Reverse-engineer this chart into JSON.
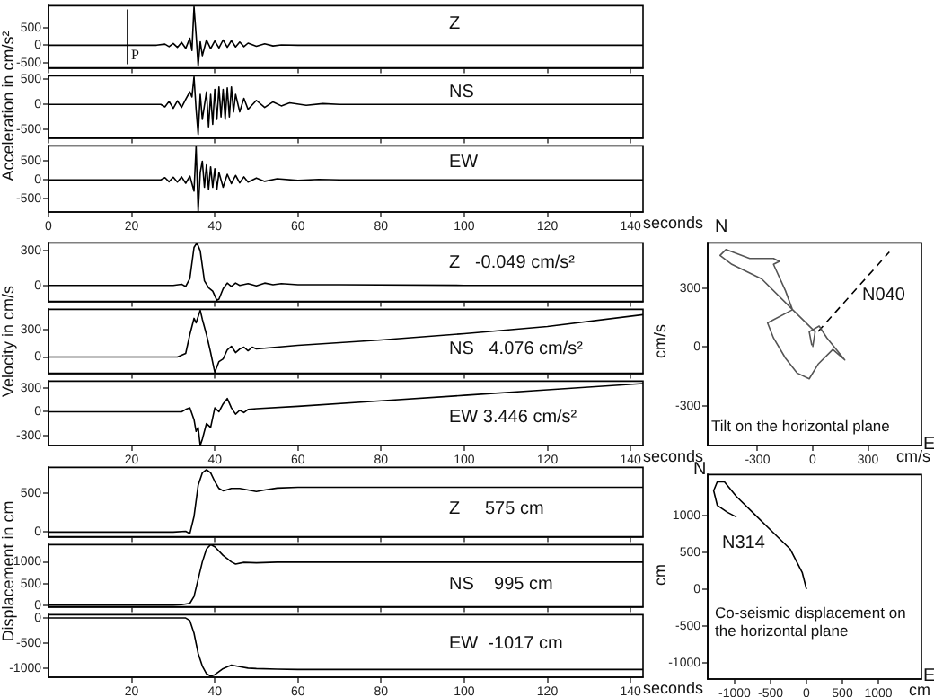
{
  "chart_data": [
    {
      "type": "line",
      "xlim": [
        0,
        143
      ],
      "xticks": [
        0,
        20,
        40,
        60,
        80,
        100,
        120,
        140
      ],
      "ylim": [
        -650,
        1130
      ],
      "yticks": [
        -500,
        0,
        500
      ],
      "tick_labels": "y",
      "annotations": [
        "Z"
      ],
      "ref_lines": [
        {
          "axis": "x",
          "value": 19,
          "label": "P"
        }
      ],
      "series": [
        {
          "color": "#000000",
          "x": [
            0,
            26,
            28,
            29,
            30,
            31,
            32,
            33,
            34,
            34.5,
            35,
            35.5,
            36,
            36.5,
            37,
            38,
            39,
            40,
            41,
            42,
            43,
            44,
            45,
            46,
            47,
            48,
            50,
            52,
            54,
            56,
            60,
            143
          ],
          "values": [
            0,
            0,
            30,
            -40,
            50,
            -60,
            80,
            -90,
            200,
            -150,
            1100,
            300,
            -600,
            100,
            -300,
            150,
            -100,
            120,
            -80,
            150,
            -60,
            130,
            -50,
            90,
            -40,
            60,
            -30,
            40,
            -20,
            10,
            0,
            0
          ]
        }
      ]
    },
    {
      "type": "line",
      "xlim": [
        0,
        143
      ],
      "xticks": [
        0,
        20,
        40,
        60,
        80,
        100,
        120,
        140
      ],
      "ylim": [
        -670,
        570
      ],
      "yticks": [
        -500,
        0,
        500
      ],
      "tick_labels": "y",
      "ylabel": "Acceleration in cm/s²",
      "annotations": [
        "NS"
      ],
      "series": [
        {
          "color": "#000000",
          "x": [
            0,
            27,
            28,
            29,
            30,
            31,
            32,
            33,
            34,
            34.5,
            35,
            35.5,
            36,
            36.5,
            37,
            38,
            38.5,
            39,
            39.5,
            40,
            40.5,
            41,
            41.5,
            42,
            42.5,
            43,
            43.5,
            44,
            44.5,
            45,
            46,
            47,
            48,
            50,
            52,
            54,
            56,
            58,
            62,
            66,
            70,
            143
          ],
          "values": [
            0,
            0,
            -50,
            60,
            -80,
            70,
            -60,
            100,
            250,
            150,
            550,
            -100,
            -600,
            200,
            -300,
            250,
            -450,
            200,
            -400,
            300,
            -300,
            350,
            -250,
            300,
            -300,
            330,
            -250,
            350,
            -150,
            200,
            -150,
            120,
            -100,
            80,
            -60,
            50,
            -30,
            30,
            -20,
            15,
            0,
            0
          ]
        }
      ]
    },
    {
      "type": "line",
      "xlim": [
        0,
        143
      ],
      "xticks": [
        0,
        20,
        40,
        60,
        80,
        100,
        120,
        140
      ],
      "ylim": [
        -860,
        910
      ],
      "yticks": [
        -500,
        0,
        500
      ],
      "xlabel": "seconds",
      "annotations": [
        "EW"
      ],
      "series": [
        {
          "color": "#000000",
          "x": [
            0,
            27,
            28,
            29,
            30,
            31,
            32,
            33,
            34,
            35,
            35.5,
            36,
            36.5,
            37,
            37.5,
            38,
            38.5,
            39,
            39.5,
            40,
            40.5,
            41,
            42,
            43,
            44,
            45,
            46,
            47,
            48,
            50,
            52,
            55,
            60,
            65,
            70,
            143
          ],
          "values": [
            0,
            0,
            60,
            -50,
            70,
            -60,
            80,
            -90,
            100,
            -300,
            900,
            -850,
            200,
            500,
            -200,
            400,
            -250,
            350,
            -200,
            300,
            -250,
            200,
            -200,
            150,
            -100,
            120,
            -80,
            80,
            -60,
            50,
            -40,
            30,
            -15,
            10,
            0,
            0
          ]
        }
      ]
    },
    {
      "type": "line",
      "xlim": [
        0,
        143
      ],
      "xticks": [
        20,
        40,
        60,
        80,
        100,
        120,
        140
      ],
      "ylim": [
        -140,
        370
      ],
      "yticks": [
        0,
        300
      ],
      "tick_labels": "y",
      "annotations": [
        "Z   -0.049 cm/s²"
      ],
      "series": [
        {
          "color": "#000000",
          "x": [
            0,
            30,
            32,
            33,
            34,
            35,
            35.7,
            36.5,
            37.5,
            38.5,
            39.5,
            40.5,
            41,
            42,
            43,
            44,
            45,
            46,
            48,
            50,
            52,
            54,
            56,
            60,
            70,
            100,
            143
          ],
          "values": [
            0,
            0,
            10,
            -10,
            60,
            330,
            370,
            300,
            40,
            -20,
            -50,
            -130,
            -120,
            -30,
            20,
            -10,
            20,
            0,
            15,
            -5,
            20,
            5,
            15,
            5,
            5,
            0,
            0
          ]
        }
      ]
    },
    {
      "type": "line",
      "xlim": [
        0,
        143
      ],
      "xticks": [
        20,
        40,
        60,
        80,
        100,
        120,
        140
      ],
      "ylim": [
        -180,
        530
      ],
      "yticks": [
        0,
        300
      ],
      "tick_labels": "y",
      "ylabel": "Velocity in cm/s",
      "annotations": [
        "NS   4.076 cm/s²"
      ],
      "series": [
        {
          "color": "#000000",
          "x": [
            0,
            31,
            32,
            33,
            34,
            35,
            35.5,
            36.5,
            37,
            38,
            39,
            40,
            41,
            42,
            43,
            44,
            45,
            46,
            47,
            48,
            49,
            50,
            55,
            60,
            70,
            80,
            100,
            120,
            143
          ],
          "values": [
            0,
            0,
            20,
            40,
            250,
            430,
            380,
            520,
            420,
            250,
            50,
            -170,
            -50,
            -20,
            80,
            120,
            50,
            90,
            110,
            70,
            110,
            90,
            110,
            130,
            160,
            190,
            260,
            340,
            470
          ]
        }
      ]
    },
    {
      "type": "line",
      "xlim": [
        0,
        143
      ],
      "xticks": [
        20,
        40,
        60,
        80,
        100,
        120,
        140
      ],
      "ylim": [
        -430,
        390
      ],
      "yticks": [
        -300,
        0,
        300
      ],
      "xlabel": "seconds",
      "annotations": [
        "EW 3.446 cm/s²"
      ],
      "series": [
        {
          "color": "#000000",
          "x": [
            0,
            32,
            33,
            34,
            35,
            35.5,
            36,
            36.5,
            37,
            38,
            39,
            40,
            41,
            42,
            43,
            44,
            45,
            46,
            47,
            48,
            50,
            60,
            80,
            100,
            120,
            143
          ],
          "values": [
            0,
            0,
            30,
            50,
            -100,
            -250,
            -200,
            -430,
            -350,
            -150,
            -200,
            50,
            0,
            100,
            170,
            50,
            -30,
            20,
            -10,
            30,
            40,
            70,
            140,
            210,
            280,
            360
          ]
        }
      ]
    },
    {
      "type": "line",
      "xlim": [
        0,
        143
      ],
      "xticks": [
        20,
        40,
        60,
        80,
        100,
        120,
        140
      ],
      "ylim": [
        -60,
        830
      ],
      "yticks": [
        0,
        500
      ],
      "tick_labels": "y",
      "annotations": [
        "Z     575 cm"
      ],
      "series": [
        {
          "color": "#000000",
          "x": [
            0,
            30,
            33,
            34,
            35,
            36,
            37,
            38,
            39,
            40,
            41,
            42,
            44,
            46,
            48,
            50,
            52,
            55,
            60,
            143
          ],
          "values": [
            0,
            0,
            10,
            -20,
            200,
            600,
            760,
            800,
            760,
            650,
            560,
            530,
            560,
            560,
            540,
            520,
            540,
            565,
            575,
            575
          ]
        }
      ]
    },
    {
      "type": "line",
      "xlim": [
        0,
        143
      ],
      "xticks": [
        20,
        40,
        60,
        80,
        100,
        120,
        140
      ],
      "ylim": [
        -40,
        1400
      ],
      "yticks": [
        0,
        500,
        1000
      ],
      "tick_labels": "y",
      "ylabel": "Displacement in cm",
      "annotations": [
        "NS    995 cm"
      ],
      "series": [
        {
          "color": "#000000",
          "x": [
            0,
            30,
            32,
            34,
            35,
            36,
            37,
            38,
            39,
            40,
            42,
            44,
            45,
            47,
            50,
            55,
            143
          ],
          "values": [
            0,
            0,
            10,
            40,
            200,
            600,
            1000,
            1300,
            1400,
            1350,
            1150,
            1000,
            950,
            990,
            980,
            995,
            995
          ]
        }
      ]
    },
    {
      "type": "line",
      "xlim": [
        0,
        143
      ],
      "xticks": [
        20,
        40,
        60,
        80,
        100,
        120,
        140
      ],
      "ylim": [
        -1170,
        65
      ],
      "yticks": [
        -1000,
        -500,
        0
      ],
      "xlabel": "seconds",
      "annotations": [
        "EW  -1017 cm"
      ],
      "series": [
        {
          "color": "#000000",
          "x": [
            0,
            33,
            34,
            35,
            36,
            37,
            38,
            39,
            40,
            42,
            44,
            46,
            48,
            50,
            55,
            60,
            143
          ],
          "values": [
            0,
            0,
            -50,
            -300,
            -700,
            -950,
            -1100,
            -1150,
            -1120,
            -1000,
            -930,
            -960,
            -990,
            -1000,
            -1010,
            -1017,
            -1017
          ]
        }
      ]
    },
    {
      "type": "line",
      "title": "Tilt  on the horizontal plane",
      "xlabel": "cm/s",
      "ylabel": "cm/s",
      "xlim": [
        -570,
        590
      ],
      "xticks": [
        -300,
        0,
        300
      ],
      "ylim": [
        -500,
        530
      ],
      "yticks": [
        -300,
        0,
        300
      ],
      "annotations": [
        "N",
        "E",
        "N040"
      ],
      "series": [
        {
          "color": "#555555",
          "x": [
            0,
            13,
            -116,
            -277,
            -439,
            -503,
            -471,
            -342,
            -213,
            -181,
            -213,
            -148,
            -110,
            -245,
            -213,
            -148,
            -84,
            -19,
            29,
            109,
            174,
            77,
            35,
            -19,
            -5
          ],
          "values": [
            0,
            78,
            197,
            347,
            421,
            466,
            496,
            451,
            451,
            436,
            421,
            287,
            190,
            123,
            47,
            -56,
            -132,
            -161,
            -87,
            -12,
            -65,
            47,
            107,
            78,
            10
          ]
        },
        {
          "color": "#000000",
          "line_style": "dashed",
          "x": [
            30,
            416
          ],
          "values": [
            80,
            484
          ]
        }
      ]
    },
    {
      "type": "line",
      "title": "Co-seismic displacement on the horizontal plane",
      "xlabel": "cm",
      "ylabel": "cm",
      "xlim": [
        -1375,
        1600
      ],
      "xticks": [
        -1000,
        -500,
        0,
        500,
        1000
      ],
      "ylim": [
        -1215,
        1550
      ],
      "yticks": [
        -1000,
        -500,
        0,
        500,
        1000
      ],
      "annotations": [
        "N",
        "E",
        "N314"
      ],
      "series": [
        {
          "color": "#000000",
          "x": [
            0,
            -58,
            -225,
            -475,
            -725,
            -975,
            -1142,
            -1242,
            -1292,
            -1242,
            -1100,
            -975
          ],
          "values": [
            0,
            222,
            540,
            778,
            1016,
            1254,
            1452,
            1452,
            1333,
            1135,
            1040,
            976
          ]
        }
      ]
    }
  ]
}
